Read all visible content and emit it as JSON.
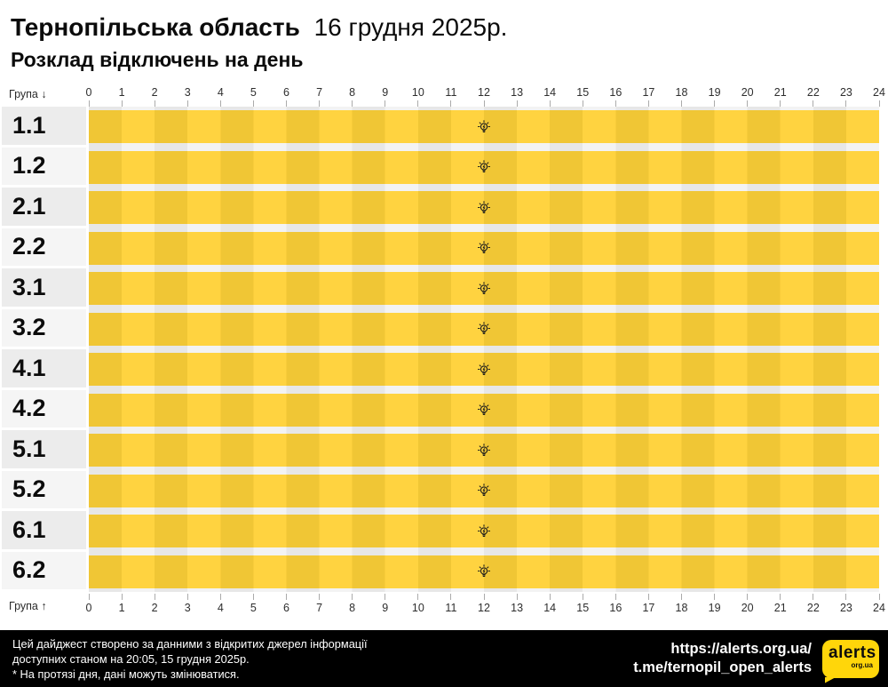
{
  "header": {
    "region": "Тернопільська область",
    "date": "16 грудня 2025р.",
    "subtitle": "Розклад відключень на день"
  },
  "chart_data": {
    "type": "table",
    "title": "Розклад відключень на день",
    "region": "Тернопільська область",
    "date": "16 грудня 2025р.",
    "x_axis": {
      "label_top": "Група ↓",
      "label_bottom": "Група ↑",
      "range": [
        0,
        24
      ],
      "hours": [
        0,
        1,
        2,
        3,
        4,
        5,
        6,
        7,
        8,
        9,
        10,
        11,
        12,
        13,
        14,
        15,
        16,
        17,
        18,
        19,
        20,
        21,
        22,
        23,
        24
      ]
    },
    "groups": [
      "1.1",
      "1.2",
      "2.1",
      "2.2",
      "3.1",
      "3.2",
      "4.1",
      "4.2",
      "5.1",
      "5.2",
      "6.1",
      "6.2"
    ],
    "rows": [
      {
        "group": "1.1",
        "power_on_intervals": [
          [
            0,
            24
          ]
        ],
        "outage_intervals": [],
        "marker_hour": 12,
        "marker_icon": "lightbulb-icon"
      },
      {
        "group": "1.2",
        "power_on_intervals": [
          [
            0,
            24
          ]
        ],
        "outage_intervals": [],
        "marker_hour": 12,
        "marker_icon": "lightbulb-icon"
      },
      {
        "group": "2.1",
        "power_on_intervals": [
          [
            0,
            24
          ]
        ],
        "outage_intervals": [],
        "marker_hour": 12,
        "marker_icon": "lightbulb-icon"
      },
      {
        "group": "2.2",
        "power_on_intervals": [
          [
            0,
            24
          ]
        ],
        "outage_intervals": [],
        "marker_hour": 12,
        "marker_icon": "lightbulb-icon"
      },
      {
        "group": "3.1",
        "power_on_intervals": [
          [
            0,
            24
          ]
        ],
        "outage_intervals": [],
        "marker_hour": 12,
        "marker_icon": "lightbulb-icon"
      },
      {
        "group": "3.2",
        "power_on_intervals": [
          [
            0,
            24
          ]
        ],
        "outage_intervals": [],
        "marker_hour": 12,
        "marker_icon": "lightbulb-icon"
      },
      {
        "group": "4.1",
        "power_on_intervals": [
          [
            0,
            24
          ]
        ],
        "outage_intervals": [],
        "marker_hour": 12,
        "marker_icon": "lightbulb-icon"
      },
      {
        "group": "4.2",
        "power_on_intervals": [
          [
            0,
            24
          ]
        ],
        "outage_intervals": [],
        "marker_hour": 12,
        "marker_icon": "lightbulb-icon"
      },
      {
        "group": "5.1",
        "power_on_intervals": [
          [
            0,
            24
          ]
        ],
        "outage_intervals": [],
        "marker_hour": 12,
        "marker_icon": "lightbulb-icon"
      },
      {
        "group": "5.2",
        "power_on_intervals": [
          [
            0,
            24
          ]
        ],
        "outage_intervals": [],
        "marker_hour": 12,
        "marker_icon": "lightbulb-icon"
      },
      {
        "group": "6.1",
        "power_on_intervals": [
          [
            0,
            24
          ]
        ],
        "outage_intervals": [],
        "marker_hour": 12,
        "marker_icon": "lightbulb-icon"
      },
      {
        "group": "6.2",
        "power_on_intervals": [
          [
            0,
            24
          ]
        ],
        "outage_intervals": [],
        "marker_hour": 12,
        "marker_icon": "lightbulb-icon"
      }
    ],
    "colors": {
      "power_on_light": "#ffd340",
      "power_on_dark": "#f0c635",
      "row_label_bg_odd": "#ececec",
      "row_label_bg_even": "#f5f5f5",
      "track_stripe_dark": "#e7e7e7",
      "track_stripe_light": "#f3f3f3",
      "footer_bg": "#000000",
      "logo_bg": "#ffd60a"
    }
  },
  "footer": {
    "disclaimer_lines": [
      "Цей дайджест створено за данними з відкритих джерел інформації",
      "доступних станом на 20:05, 15 грудня 2025р.",
      "* На протязі дня, дані можуть змінюватися."
    ],
    "url": "https://alerts.org.ua/",
    "telegram": "t.me/ternopil_open_alerts",
    "logo_text": "alerts",
    "logo_sub": "org.ua"
  }
}
